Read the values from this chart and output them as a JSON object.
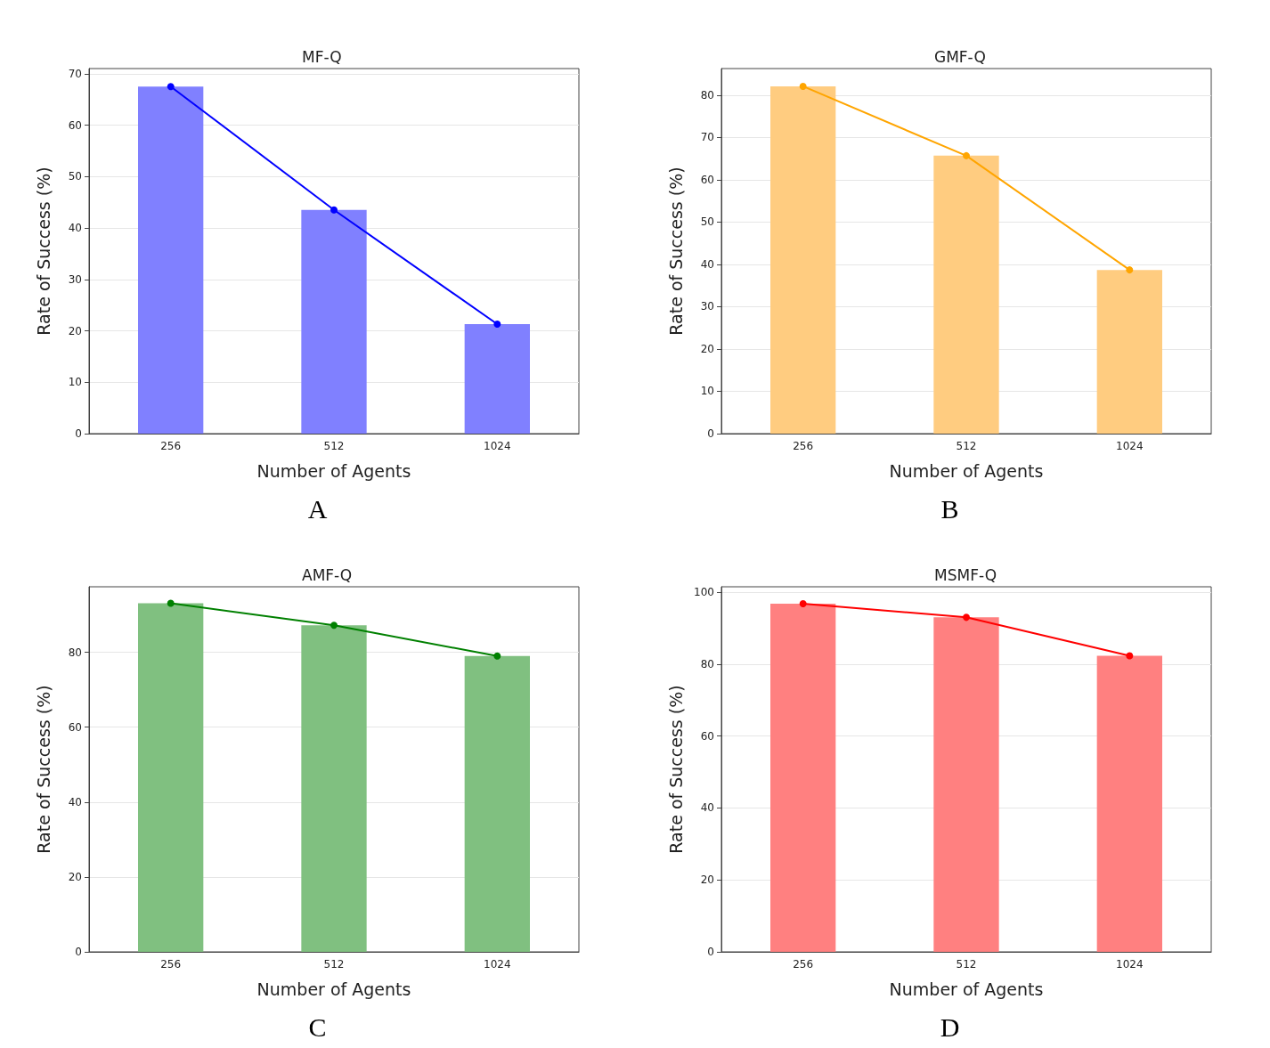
{
  "chart_data": [
    {
      "type": "bar",
      "title": "MF-Q",
      "xlabel": "Number of Agents",
      "ylabel": "Rate of Success (%)",
      "categories": [
        "256",
        "512",
        "1024"
      ],
      "series": [
        {
          "color": "#8080ff",
          "values": [
            67.5,
            43.5,
            21.3
          ]
        },
        {
          "type": "line",
          "color": "#0000ff",
          "values": [
            67.5,
            43.5,
            21.3
          ]
        }
      ],
      "marker": "circle",
      "ylim": [
        0,
        71
      ],
      "yticks": [
        0,
        10,
        20,
        30,
        40,
        50,
        60,
        70
      ],
      "grid": "y",
      "annotations": [
        "A"
      ]
    },
    {
      "type": "bar",
      "title": "GMF-Q",
      "xlabel": "Number of Agents",
      "ylabel": "Rate of Success (%)",
      "categories": [
        "256",
        "512",
        "1024"
      ],
      "series": [
        {
          "color": "#ffcc80",
          "values": [
            82.1,
            65.7,
            38.7
          ]
        },
        {
          "type": "line",
          "color": "#ffa500",
          "values": [
            82.1,
            65.7,
            38.7
          ]
        }
      ],
      "marker": "circle",
      "ylim": [
        0,
        86.3
      ],
      "yticks": [
        0,
        10,
        20,
        30,
        40,
        50,
        60,
        70,
        80
      ],
      "grid": "y",
      "annotations": [
        "B"
      ]
    },
    {
      "type": "bar",
      "title": "AMF-Q",
      "xlabel": "Number of Agents",
      "ylabel": "Rate of Success (%)",
      "categories": [
        "256",
        "512",
        "1024"
      ],
      "series": [
        {
          "color": "#80c080",
          "values": [
            93.1,
            87.2,
            79.0
          ]
        },
        {
          "type": "line",
          "color": "#008000",
          "values": [
            93.1,
            87.2,
            79.0
          ]
        }
      ],
      "marker": "circle",
      "ylim": [
        0,
        97.5
      ],
      "yticks": [
        0,
        20,
        40,
        60,
        80
      ],
      "grid": "y",
      "annotations": [
        "C"
      ]
    },
    {
      "type": "bar",
      "title": "MSMF-Q",
      "xlabel": "Number of Agents",
      "ylabel": "Rate of Success (%)",
      "categories": [
        "256",
        "512",
        "1024"
      ],
      "series": [
        {
          "color": "#ff8080",
          "values": [
            96.8,
            93.0,
            82.3
          ]
        },
        {
          "type": "line",
          "color": "#ff0000",
          "values": [
            96.8,
            93.0,
            82.3
          ]
        }
      ],
      "marker": "circle",
      "ylim": [
        0,
        101.5
      ],
      "yticks": [
        0,
        20,
        40,
        60,
        80,
        100
      ],
      "grid": "y",
      "annotations": [
        "D"
      ]
    }
  ]
}
